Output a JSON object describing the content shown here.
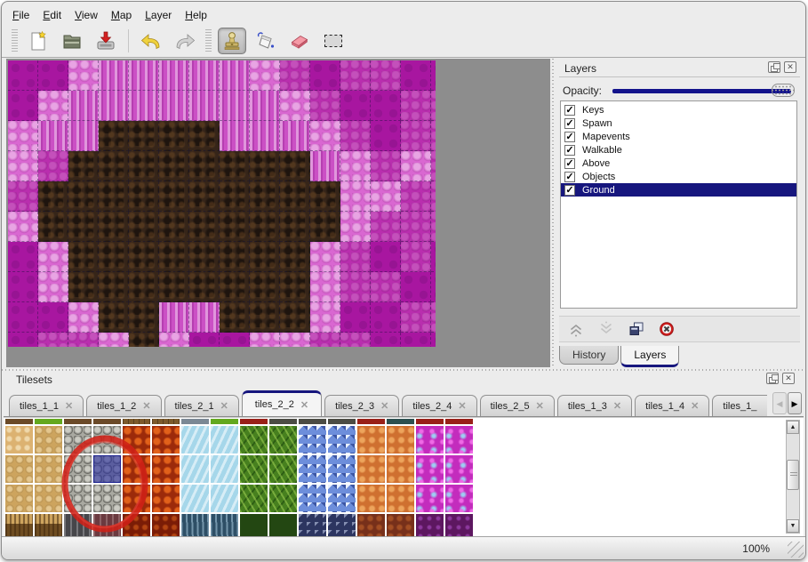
{
  "menu": {
    "items": [
      "File",
      "Edit",
      "View",
      "Map",
      "Layer",
      "Help"
    ]
  },
  "toolbar": {
    "tools": [
      "new-file",
      "open-file",
      "save-file",
      "undo",
      "redo",
      "stamp-tool",
      "fill-tool",
      "eraser-tool",
      "select-tool"
    ],
    "active_tool": "stamp-tool"
  },
  "icons": {
    "check": "✓",
    "tab_close": "✕",
    "scroll_left": "◀",
    "scroll_right": "▶",
    "scroll_up": "▲",
    "scroll_down": "▼",
    "panel_close": "✕"
  },
  "colors": {
    "accent_navy": "#17177e",
    "slider_navy": "#14148c",
    "annotation_red": "#cf2017",
    "map_bg_gray": "#8d8d8d",
    "selection_blue": "#2b309e"
  },
  "layers_panel": {
    "title": "Layers",
    "opacity_label": "Opacity:",
    "opacity_percent": 100,
    "layers": [
      {
        "label": "Keys",
        "checked": true,
        "selected": false
      },
      {
        "label": "Spawn",
        "checked": true,
        "selected": false
      },
      {
        "label": "Mapevents",
        "checked": true,
        "selected": false
      },
      {
        "label": "Walkable",
        "checked": true,
        "selected": false
      },
      {
        "label": "Above",
        "checked": true,
        "selected": false
      },
      {
        "label": "Objects",
        "checked": true,
        "selected": false
      },
      {
        "label": "Ground",
        "checked": true,
        "selected": true
      }
    ],
    "buttons": [
      "move-layer-up",
      "move-layer-down",
      "duplicate-layer",
      "delete-layer"
    ],
    "bottom_tabs": [
      {
        "label": "History",
        "active": false
      },
      {
        "label": "Layers",
        "active": true
      }
    ]
  },
  "tilesets_panel": {
    "title": "Tilesets",
    "tabs": [
      {
        "label": "tiles_1_1",
        "active": false,
        "truncated": false
      },
      {
        "label": "tiles_1_2",
        "active": false,
        "truncated": false
      },
      {
        "label": "tiles_2_1",
        "active": false,
        "truncated": false
      },
      {
        "label": "tiles_2_2",
        "active": true,
        "truncated": false
      },
      {
        "label": "tiles_2_3",
        "active": false,
        "truncated": false
      },
      {
        "label": "tiles_2_4",
        "active": false,
        "truncated": false
      },
      {
        "label": "tiles_2_5",
        "active": false,
        "truncated": false
      },
      {
        "label": "tiles_1_3",
        "active": false,
        "truncated": false
      },
      {
        "label": "tiles_1_4",
        "active": false,
        "truncated": false
      },
      {
        "label": "tiles_1_",
        "active": false,
        "truncated": true
      }
    ],
    "scroll": {
      "left_enabled": false,
      "right_enabled": true
    },
    "selected_tile": {
      "grid_row": 2,
      "col": 3
    },
    "sliver_row_index": 0,
    "grid": [
      "dgddwwxgrkkkrtrr",
      "aAsslliivvccoomm",
      "AAsslliivvccoomm",
      "AAsslliivvccoomm",
      "FFGRDDJJNNKKBBPP"
    ],
    "palette": {
      "a": "c-sandl",
      "A": "c-sand",
      "s": "c-stone",
      "l": "c-lava",
      "i": "c-ice",
      "v": "c-vine",
      "c": "c-crys",
      "o": "c-oran",
      "m": "c-mag",
      "d": "c-dirt",
      "g": "c-grass",
      "w": "c-wood",
      "x": "c-metal",
      "r": "c-dred",
      "k": "c-dstone",
      "t": "c-teal",
      "F": "c-fringe",
      "G": "c-gfall",
      "R": "c-rfall",
      "D": "c-dlava",
      "J": "c-ifall",
      "N": "c-dvine",
      "K": "c-dcrys",
      "B": "c-brred",
      "P": "c-dmag"
    }
  },
  "map": {
    "grid": [
      "DDLPPPPPLMDMMDD",
      "DLPPPPPPPLMDDMM",
      "LPPBBBBPPPLMDMM",
      "LMBBBBBBBBPLMLM",
      "MBBBBBBBBBBLLMM",
      "LBBBBBBBBBBLMMM",
      "DLBBBBBBBBLMDMD",
      "DLBBBBBBBBLMMDD",
      "DDLBBPPBBBLDDMM",
      "DMMLBLDDLLMMDDD"
    ],
    "palette": {
      "D": "m-dark",
      "M": "m-mid",
      "L": "m-light",
      "P": "m-pillar",
      "B": "m-rock"
    }
  },
  "status_bar": {
    "zoom": "100%"
  }
}
